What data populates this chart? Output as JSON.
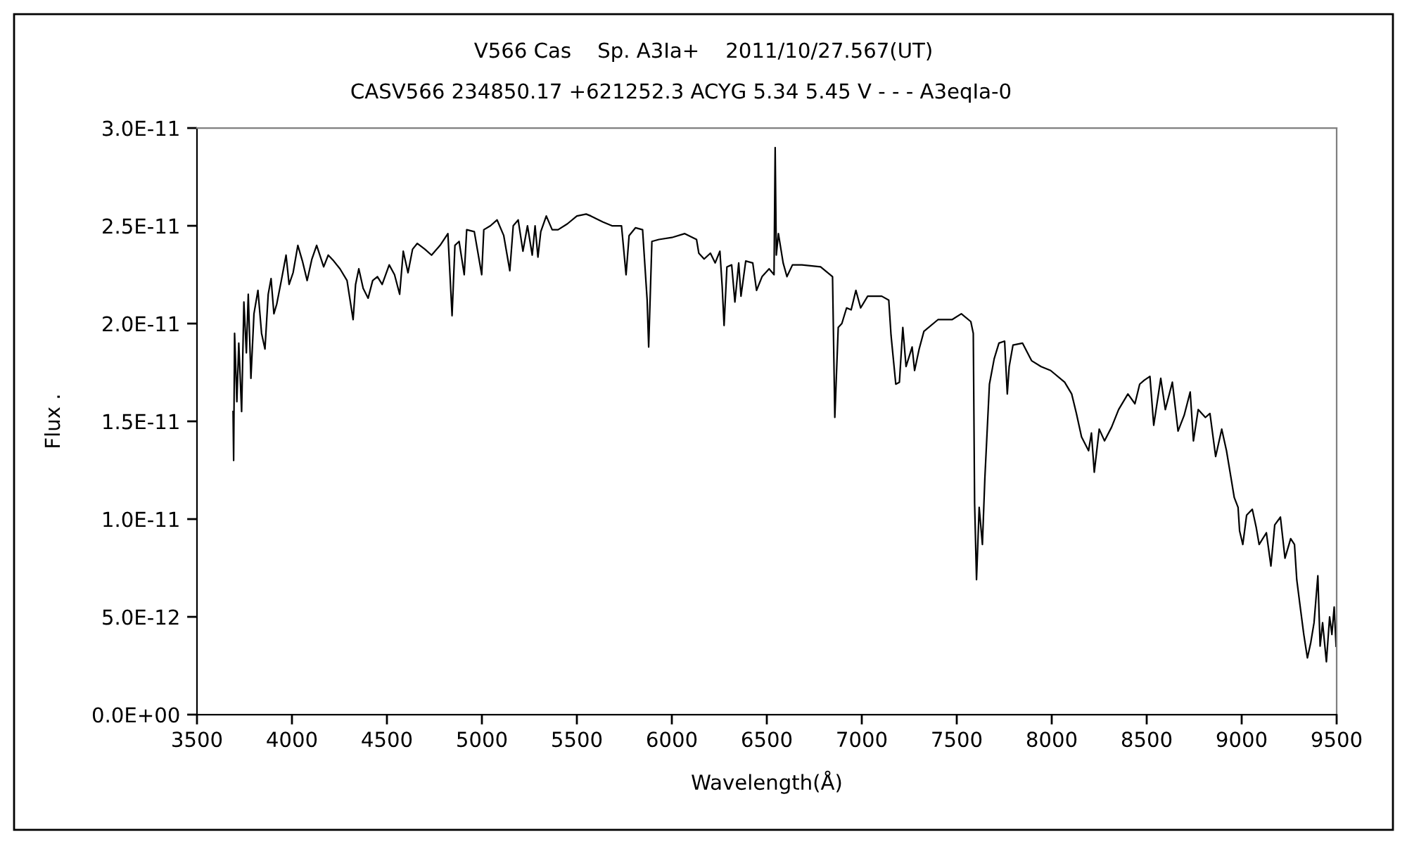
{
  "chart_data": {
    "type": "line",
    "title": "V566 Cas    Sp. A3Ⅰa+    2011/10/27.567(UT)",
    "subtitle": "CASV566 234850.17 +621252.3 ACYG 5.34 5.45 V - - - A3eqⅠa-0",
    "xlabel": "Wavelength(Å)",
    "ylabel": "Flux .",
    "x": [
      3690,
      3693,
      3698,
      3710,
      3720,
      3735,
      3747,
      3760,
      3770,
      3784,
      3800,
      3821,
      3840,
      3858,
      3875,
      3890,
      3905,
      3920,
      3944,
      3969,
      3985,
      4006,
      4031,
      4055,
      4080,
      4105,
      4130,
      4167,
      4191,
      4220,
      4253,
      4290,
      4322,
      4335,
      4352,
      4375,
      4401,
      4425,
      4450,
      4475,
      4512,
      4540,
      4567,
      4586,
      4611,
      4635,
      4660,
      4700,
      4735,
      4780,
      4821,
      4843,
      4858,
      4880,
      4907,
      4920,
      4960,
      4999,
      5010,
      5045,
      5080,
      5115,
      5147,
      5165,
      5191,
      5216,
      5240,
      5265,
      5280,
      5295,
      5310,
      5339,
      5370,
      5401,
      5450,
      5500,
      5549,
      5574,
      5636,
      5685,
      5735,
      5759,
      5775,
      5809,
      5846,
      5870,
      5878,
      5895,
      5932,
      6000,
      6068,
      6130,
      6142,
      6170,
      6203,
      6228,
      6253,
      6265,
      6275,
      6290,
      6315,
      6332,
      6352,
      6364,
      6389,
      6426,
      6446,
      6475,
      6512,
      6538,
      6544,
      6550,
      6561,
      6586,
      6606,
      6635,
      6685,
      6783,
      6846,
      6858,
      6876,
      6895,
      6920,
      6944,
      6969,
      6994,
      7031,
      7105,
      7142,
      7154,
      7179,
      7198,
      7216,
      7233,
      7265,
      7278,
      7302,
      7327,
      7401,
      7475,
      7524,
      7574,
      7587,
      7594,
      7604,
      7618,
      7635,
      7648,
      7672,
      7697,
      7722,
      7752,
      7766,
      7776,
      7796,
      7846,
      7894,
      7944,
      7994,
      8068,
      8105,
      8130,
      8157,
      8194,
      8209,
      8224,
      8250,
      8278,
      8315,
      8352,
      8401,
      8438,
      8463,
      8487,
      8517,
      8537,
      8574,
      8598,
      8635,
      8665,
      8697,
      8729,
      8746,
      8771,
      8809,
      8833,
      8863,
      8895,
      8920,
      8944,
      8961,
      8981,
      8989,
      9006,
      9026,
      9056,
      9076,
      9092,
      9130,
      9154,
      9174,
      9204,
      9228,
      9258,
      9278,
      9290,
      9307,
      9327,
      9346,
      9364,
      9381,
      9401,
      9413,
      9426,
      9446,
      9463,
      9475,
      9487,
      9497
    ],
    "series": [
      {
        "color": "#000000",
        "values": [
          1.55e-11,
          1.3e-11,
          1.95e-11,
          1.6e-11,
          1.9e-11,
          1.55e-11,
          2.11e-11,
          1.85e-11,
          2.15e-11,
          1.72e-11,
          2.05e-11,
          2.17e-11,
          1.95e-11,
          1.87e-11,
          2.15e-11,
          2.23e-11,
          2.05e-11,
          2.1e-11,
          2.22e-11,
          2.35e-11,
          2.2e-11,
          2.26e-11,
          2.4e-11,
          2.32e-11,
          2.22e-11,
          2.33e-11,
          2.4e-11,
          2.29e-11,
          2.35e-11,
          2.32e-11,
          2.28e-11,
          2.22e-11,
          2.02e-11,
          2.2e-11,
          2.28e-11,
          2.18e-11,
          2.13e-11,
          2.22e-11,
          2.24e-11,
          2.2e-11,
          2.3e-11,
          2.25e-11,
          2.15e-11,
          2.37e-11,
          2.26e-11,
          2.38e-11,
          2.41e-11,
          2.38e-11,
          2.35e-11,
          2.4e-11,
          2.46e-11,
          2.04e-11,
          2.4e-11,
          2.42e-11,
          2.25e-11,
          2.48e-11,
          2.47e-11,
          2.25e-11,
          2.48e-11,
          2.5e-11,
          2.53e-11,
          2.45e-11,
          2.27e-11,
          2.5e-11,
          2.53e-11,
          2.37e-11,
          2.5e-11,
          2.35e-11,
          2.5e-11,
          2.34e-11,
          2.47e-11,
          2.55e-11,
          2.48e-11,
          2.48e-11,
          2.51e-11,
          2.55e-11,
          2.56e-11,
          2.55e-11,
          2.52e-11,
          2.5e-11,
          2.5e-11,
          2.25e-11,
          2.45e-11,
          2.49e-11,
          2.48e-11,
          2.12e-11,
          1.88e-11,
          2.42e-11,
          2.43e-11,
          2.44e-11,
          2.46e-11,
          2.43e-11,
          2.36e-11,
          2.33e-11,
          2.36e-11,
          2.31e-11,
          2.37e-11,
          2.19e-11,
          1.99e-11,
          2.29e-11,
          2.3e-11,
          2.11e-11,
          2.31e-11,
          2.14e-11,
          2.32e-11,
          2.31e-11,
          2.17e-11,
          2.24e-11,
          2.28e-11,
          2.25e-11,
          2.9e-11,
          2.35e-11,
          2.46e-11,
          2.31e-11,
          2.24e-11,
          2.3e-11,
          2.3e-11,
          2.29e-11,
          2.24e-11,
          1.52e-11,
          1.98e-11,
          2e-11,
          2.08e-11,
          2.07e-11,
          2.17e-11,
          2.08e-11,
          2.14e-11,
          2.14e-11,
          2.12e-11,
          1.94e-11,
          1.69e-11,
          1.7e-11,
          1.98e-11,
          1.78e-11,
          1.88e-11,
          1.76e-11,
          1.87e-11,
          1.96e-11,
          2.02e-11,
          2.02e-11,
          2.05e-11,
          2.01e-11,
          1.95e-11,
          1.08e-11,
          6.9e-12,
          1.06e-11,
          8.7e-12,
          1.21e-11,
          1.69e-11,
          1.82e-11,
          1.9e-11,
          1.91e-11,
          1.64e-11,
          1.78e-11,
          1.89e-11,
          1.9e-11,
          1.81e-11,
          1.78e-11,
          1.76e-11,
          1.7e-11,
          1.64e-11,
          1.54e-11,
          1.42e-11,
          1.35e-11,
          1.44e-11,
          1.24e-11,
          1.46e-11,
          1.4e-11,
          1.47e-11,
          1.56e-11,
          1.64e-11,
          1.59e-11,
          1.69e-11,
          1.71e-11,
          1.73e-11,
          1.48e-11,
          1.72e-11,
          1.56e-11,
          1.7e-11,
          1.45e-11,
          1.53e-11,
          1.65e-11,
          1.4e-11,
          1.56e-11,
          1.52e-11,
          1.54e-11,
          1.32e-11,
          1.46e-11,
          1.35e-11,
          1.21e-11,
          1.11e-11,
          1.06e-11,
          9.4e-12,
          8.7e-12,
          1.02e-11,
          1.05e-11,
          9.6e-12,
          8.7e-12,
          9.3e-12,
          7.6e-12,
          9.7e-12,
          1.01e-11,
          8e-12,
          9e-12,
          8.7e-12,
          6.9e-12,
          5.6e-12,
          4.1e-12,
          2.9e-12,
          3.7e-12,
          4.7e-12,
          7.1e-12,
          3.5e-12,
          4.7e-12,
          2.7e-12,
          5e-12,
          4.1e-12,
          5.5e-12,
          3.5e-12
        ]
      }
    ],
    "xlim": [
      3500,
      9500
    ],
    "xticks": [
      3500,
      4000,
      4500,
      5000,
      5500,
      6000,
      6500,
      7000,
      7500,
      8000,
      8500,
      9000,
      9500
    ],
    "ylim": [
      0,
      3e-11
    ],
    "yticks": [
      {
        "value": 0,
        "label": "0.0E+00"
      },
      {
        "value": 5e-12,
        "label": "5.0E-12"
      },
      {
        "value": 1e-11,
        "label": "1.0E-11"
      },
      {
        "value": 1.5e-11,
        "label": "1.5E-11"
      },
      {
        "value": 2e-11,
        "label": "2.0E-11"
      },
      {
        "value": 2.5e-11,
        "label": "2.5E-11"
      },
      {
        "value": 3e-11,
        "label": "3.0E-11"
      }
    ],
    "grid": false,
    "marker": "none",
    "line_style": "solid"
  }
}
